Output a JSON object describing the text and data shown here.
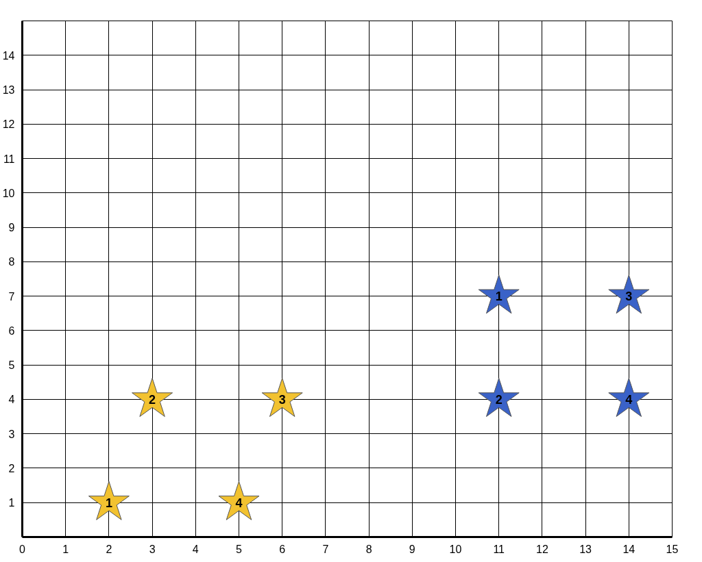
{
  "chart_data": {
    "type": "scatter",
    "xlim": [
      0,
      15
    ],
    "ylim": [
      0,
      15
    ],
    "xticks": [
      0,
      1,
      2,
      3,
      4,
      5,
      6,
      7,
      8,
      9,
      10,
      11,
      12,
      13,
      14,
      15
    ],
    "yticks": [
      {
        "value": 0,
        "label": null
      },
      1,
      2,
      3,
      4,
      5,
      6,
      7,
      8,
      9,
      10,
      11,
      12,
      13,
      14,
      {
        "value": 15,
        "label": null
      }
    ],
    "grid": true,
    "marker": "star",
    "series": [
      {
        "color": "#f2c230",
        "x": [
          2,
          3,
          6,
          5
        ],
        "values": [
          1,
          4,
          4,
          1
        ]
      },
      {
        "color": "#3a62c8",
        "x": [
          11,
          11,
          14,
          14
        ],
        "values": [
          7,
          4,
          7,
          4
        ]
      }
    ],
    "annotations": [
      {
        "text": "1",
        "x": 2,
        "y": 1
      },
      {
        "text": "2",
        "x": 3,
        "y": 4
      },
      {
        "text": "3",
        "x": 6,
        "y": 4
      },
      {
        "text": "4",
        "x": 5,
        "y": 1
      },
      {
        "text": "1",
        "x": 11,
        "y": 7
      },
      {
        "text": "2",
        "x": 11,
        "y": 4
      },
      {
        "text": "3",
        "x": 14,
        "y": 7
      },
      {
        "text": "4",
        "x": 14,
        "y": 4
      }
    ]
  }
}
